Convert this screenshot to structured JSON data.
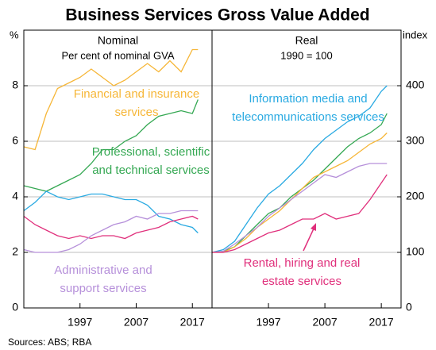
{
  "title": "Business Services Gross Value Added",
  "source": "Sources:   ABS; RBA",
  "chart_data": [
    {
      "type": "line",
      "subtitle": "Nominal",
      "note": "Per cent of nominal GVA",
      "y_label": "%",
      "y_axis_side": "left",
      "xlim": [
        1987,
        2020.5
      ],
      "xticks": [
        1997,
        2007,
        2017
      ],
      "ylim": [
        0,
        10
      ],
      "yticks": [
        0,
        2,
        4,
        6,
        8
      ],
      "grid": true,
      "x": [
        1987,
        1989,
        1991,
        1993,
        1995,
        1997,
        1999,
        2001,
        2003,
        2005,
        2007,
        2009,
        2011,
        2013,
        2015,
        2017,
        2018
      ],
      "series": [
        {
          "name": "Financial and insurance services",
          "color": "#f6b637",
          "values": [
            5.8,
            5.7,
            7.0,
            7.9,
            8.1,
            8.3,
            8.6,
            8.3,
            8.0,
            8.2,
            8.5,
            8.8,
            8.5,
            8.9,
            8.5,
            9.3,
            9.3
          ]
        },
        {
          "name": "Professional, scientific and technical services",
          "color": "#35a853",
          "values": [
            4.4,
            4.3,
            4.2,
            4.4,
            4.6,
            4.8,
            5.2,
            5.7,
            5.7,
            6.0,
            6.2,
            6.6,
            6.9,
            7.0,
            7.1,
            7.0,
            7.5
          ]
        },
        {
          "color": "#2aaae2",
          "values": [
            3.5,
            3.8,
            4.2,
            4.0,
            3.9,
            4.0,
            4.1,
            4.1,
            4.0,
            3.9,
            3.9,
            3.7,
            3.3,
            3.2,
            3.0,
            2.9,
            2.7
          ]
        },
        {
          "color": "#e0307c",
          "values": [
            3.3,
            3.0,
            2.8,
            2.6,
            2.5,
            2.6,
            2.5,
            2.6,
            2.6,
            2.5,
            2.7,
            2.8,
            2.9,
            3.1,
            3.2,
            3.3,
            3.2
          ]
        },
        {
          "name": "Administrative and support services",
          "color": "#b690da",
          "values": [
            2.1,
            2.0,
            2.0,
            2.0,
            2.1,
            2.3,
            2.6,
            2.8,
            3.0,
            3.1,
            3.3,
            3.2,
            3.4,
            3.4,
            3.5,
            3.5,
            3.5
          ]
        }
      ]
    },
    {
      "type": "line",
      "subtitle": "Real",
      "note": "1990 = 100",
      "y_label": "index",
      "y_axis_side": "right",
      "xlim": [
        1987,
        2020.5
      ],
      "xticks": [
        1997,
        2007,
        2017
      ],
      "ylim": [
        0,
        500
      ],
      "yticks": [
        0,
        100,
        200,
        300,
        400
      ],
      "grid": true,
      "x": [
        1987,
        1989,
        1991,
        1993,
        1995,
        1997,
        1999,
        2001,
        2003,
        2005,
        2007,
        2009,
        2011,
        2013,
        2015,
        2017,
        2018
      ],
      "series": [
        {
          "name": "Information media and telecommunications services",
          "color": "#2aaae2",
          "values": [
            100,
            105,
            120,
            150,
            180,
            205,
            220,
            240,
            260,
            285,
            305,
            320,
            335,
            345,
            360,
            390,
            400
          ]
        },
        {
          "color": "#35a853",
          "values": [
            100,
            102,
            110,
            130,
            150,
            170,
            180,
            200,
            215,
            230,
            250,
            270,
            290,
            305,
            315,
            330,
            350
          ]
        },
        {
          "color": "#f6b637",
          "values": [
            100,
            100,
            110,
            125,
            145,
            160,
            175,
            195,
            215,
            235,
            245,
            255,
            265,
            280,
            295,
            305,
            315
          ]
        },
        {
          "color": "#b690da",
          "values": [
            100,
            102,
            115,
            130,
            145,
            165,
            180,
            195,
            210,
            225,
            240,
            235,
            245,
            255,
            260,
            260,
            260
          ]
        },
        {
          "name": "Rental, hiring and real estate services",
          "color": "#e0307c",
          "values": [
            100,
            100,
            105,
            115,
            125,
            135,
            140,
            150,
            160,
            160,
            170,
            160,
            165,
            170,
            195,
            225,
            240
          ]
        }
      ]
    }
  ]
}
